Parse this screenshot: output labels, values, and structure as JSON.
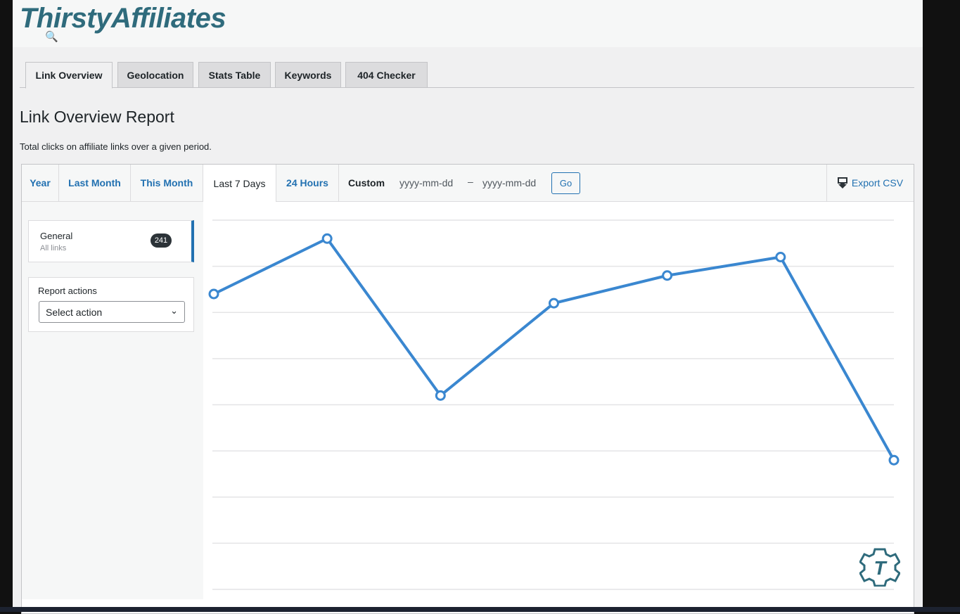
{
  "header": {
    "logo": "ThirstyAffiliates"
  },
  "tabs": [
    {
      "label": "Link Overview",
      "active": true
    },
    {
      "label": "Geolocation"
    },
    {
      "label": "Stats Table"
    },
    {
      "label": "Keywords"
    },
    {
      "label": "404 Checker"
    }
  ],
  "page": {
    "title": "Link Overview Report",
    "description": "Total clicks on affiliate links over a given period."
  },
  "ranges": {
    "year": "Year",
    "last_month": "Last Month",
    "this_month": "This Month",
    "last_7_days": "Last 7 Days",
    "hours_24": "24 Hours",
    "custom": "Custom",
    "selected": "Last 7 Days"
  },
  "custom": {
    "start_placeholder": "yyyy-mm-dd",
    "separator": "–",
    "end_placeholder": "yyyy-mm-dd",
    "go": "Go"
  },
  "export": {
    "label": "Export CSV",
    "icon": "download-icon"
  },
  "sidebar": {
    "general": {
      "name": "General",
      "sub": "All links",
      "count": "241"
    },
    "actions": {
      "label": "Report actions",
      "select": "Select action"
    }
  },
  "colors": {
    "accent": "#2271b1",
    "series": "#3a87d0",
    "logo": "#2f6b7c"
  },
  "chart_data": {
    "type": "line",
    "title": "",
    "xlabel": "",
    "ylabel": "",
    "x": [
      1,
      2,
      3,
      4,
      5,
      6,
      7
    ],
    "values": [
      6.4,
      7.6,
      4.2,
      6.2,
      6.8,
      7.2,
      2.8
    ],
    "ylim": [
      0,
      8
    ],
    "grid": true,
    "axis_labels_visible": false,
    "markers": "hollow-circle"
  }
}
